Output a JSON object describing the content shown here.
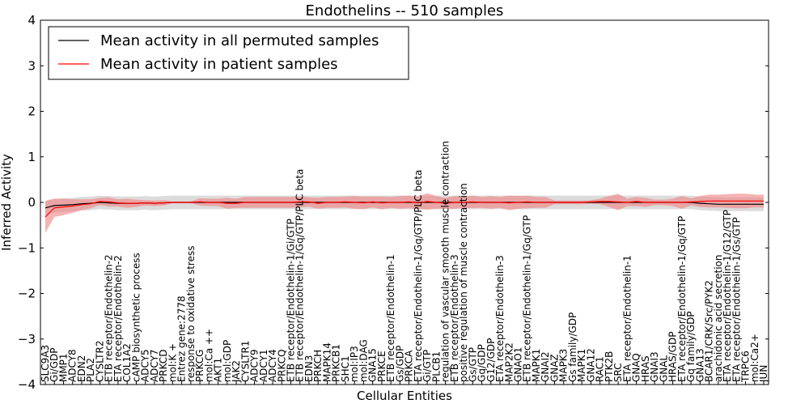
{
  "chart_data": {
    "type": "line",
    "title": "Endothelins -- 510 samples",
    "xlabel": "Cellular Entities",
    "ylabel": "Inferred Activity",
    "ylim": [
      -4,
      4
    ],
    "yticks": [
      "−4",
      "−3",
      "−2",
      "−1",
      "0",
      "1",
      "2",
      "3",
      "4"
    ],
    "grid": false,
    "legend_position": "top-left",
    "colors": {
      "permuted": "#000000",
      "patient": "#ff0000",
      "patient_band": "#f28080",
      "permuted_band": "#bfbfbf"
    },
    "categories": [
      "SLC9A3",
      "Gi/GDP",
      "MMP1",
      "ADCY8",
      "EDN2",
      "PLA2",
      "CYSLTR2",
      "ETB receptor/Endothelin-2",
      "ETA receptor/Endothelin-2",
      "COL1A2",
      "cAMP biosynthetic process",
      "ADCY5",
      "ADCY7",
      "PRKCD",
      "mol:K +",
      "Entrez gene:2778",
      "response to oxidative stress",
      "PRKCG",
      "mol:Ca ++",
      "AKT1",
      "mol:GDP",
      "JAK2",
      "CYSLTR1",
      "ADCY9",
      "ADCY1",
      "ADCY4",
      "PRKCQ",
      "ETB receptor/Endothelin-1/Gi/GTP",
      "ETB receptor/Endothelin-1/Gq/GTP/PLC beta",
      "EDN3",
      "PRKCH",
      "MAPK14",
      "PRKCB1",
      "SHC1",
      "mol:IP3",
      "mol:DAG",
      "GNA15",
      "PRKCE",
      "ETB receptor/Endothelin-1",
      "Gs/GDP",
      "PRKCA",
      "ETA receptor/Endothelin-1/Gq/GTP/PLC beta",
      "Gi/GTP",
      "PLCB1",
      "regulation of vascular smooth muscle contraction",
      "ETB receptor/Endothelin-3",
      "positive regulation of muscle contraction",
      "Gs/GTP",
      "Gq/GDP",
      "G12/GDP",
      "ETA receptor/Endothelin-3",
      "MAP2K2",
      "GNAO1",
      "ETB receptor/Endothelin-1/Gq/GTP",
      "MAPK1",
      "GNAI2",
      "GNAZ",
      "MAPK3",
      "Gs family/GDP",
      "MAPK1",
      "GNA12",
      "RAC1",
      "PTK2B",
      "SRC",
      "ETA receptor/Endothelin-1",
      "GNAQ",
      "HRAS",
      "GNAI3",
      "GNAL",
      "HRAS/GDP",
      "ETA receptor/Endothelin-1/Gq/GTP",
      "Gq family/GDP",
      "GNA13",
      "BCAR1/CRK/Src/PYK2",
      "arachidonic acid secretion",
      "ETA receptor/Endothelin-1/G12/GTP",
      "ETA receptor/Endothelin-1/Gs/GTP",
      "TRPC6",
      "mol:Ca2+",
      "JUN"
    ],
    "series": [
      {
        "name": "Mean activity in all permuted samples",
        "values": [
          -0.12,
          -0.07,
          -0.06,
          -0.05,
          -0.03,
          -0.02,
          0.0,
          -0.01,
          -0.02,
          -0.02,
          -0.02,
          -0.01,
          -0.02,
          -0.01,
          0.0,
          0.0,
          0.0,
          0.0,
          0.0,
          0.0,
          0.0,
          0.0,
          0.0,
          0.0,
          0.0,
          0.0,
          0.0,
          0.0,
          0.0,
          0.0,
          0.0,
          0.0,
          0.0,
          0.0,
          0.0,
          0.0,
          0.0,
          0.0,
          0.0,
          0.0,
          0.0,
          0.0,
          0.0,
          0.0,
          0.0,
          0.0,
          0.0,
          0.0,
          0.0,
          0.0,
          0.0,
          0.0,
          0.0,
          0.0,
          0.0,
          0.0,
          0.0,
          0.0,
          0.0,
          0.0,
          0.0,
          0.0,
          0.0,
          0.0,
          0.0,
          0.0,
          0.0,
          0.0,
          0.0,
          0.0,
          0.0,
          0.0,
          -0.02,
          -0.03,
          -0.04,
          -0.04,
          -0.04,
          -0.04,
          -0.04,
          -0.04
        ],
        "band": [
          0.15,
          0.15,
          0.15,
          0.15,
          0.15,
          0.15,
          0.15,
          0.15,
          0.15,
          0.15,
          0.15,
          0.15,
          0.15,
          0.15,
          0.15,
          0.15,
          0.15,
          0.15,
          0.15,
          0.15,
          0.15,
          0.15,
          0.15,
          0.15,
          0.15,
          0.15,
          0.15,
          0.15,
          0.15,
          0.15,
          0.15,
          0.15,
          0.15,
          0.15,
          0.15,
          0.15,
          0.15,
          0.15,
          0.15,
          0.15,
          0.15,
          0.15,
          0.15,
          0.15,
          0.15,
          0.15,
          0.15,
          0.15,
          0.15,
          0.15,
          0.15,
          0.15,
          0.15,
          0.15,
          0.15,
          0.15,
          0.15,
          0.15,
          0.15,
          0.15,
          0.15,
          0.15,
          0.15,
          0.15,
          0.15,
          0.15,
          0.15,
          0.15,
          0.15,
          0.15,
          0.15,
          0.15,
          0.15,
          0.15,
          0.15,
          0.15,
          0.15,
          0.15,
          0.15,
          0.15
        ]
      },
      {
        "name": "Mean activity in patient samples",
        "values": [
          -0.32,
          -0.12,
          -0.1,
          -0.08,
          -0.05,
          -0.03,
          0.02,
          0.01,
          -0.01,
          -0.02,
          -0.02,
          -0.01,
          -0.02,
          -0.01,
          0.0,
          0.0,
          0.0,
          0.01,
          0.0,
          0.0,
          -0.02,
          -0.02,
          0.0,
          0.0,
          0.0,
          0.0,
          0.0,
          0.0,
          0.01,
          0.01,
          -0.02,
          0.0,
          0.0,
          0.01,
          0.0,
          -0.01,
          0.01,
          -0.01,
          0.0,
          0.0,
          0.01,
          -0.01,
          0.02,
          0.0,
          -0.02,
          0.0,
          0.0,
          0.01,
          0.0,
          0.0,
          0.0,
          -0.01,
          0.0,
          0.01,
          0.0,
          0.0,
          0.0,
          0.0,
          0.0,
          0.0,
          0.01,
          0.02,
          0.02,
          0.01,
          0.0,
          0.02,
          0.0,
          0.0,
          0.0,
          0.0,
          0.0,
          0.01,
          0.02,
          0.03,
          0.03,
          0.03,
          0.03,
          0.03,
          0.03,
          0.03
        ],
        "band": [
          0.35,
          0.2,
          0.18,
          0.15,
          0.12,
          0.1,
          0.08,
          0.1,
          0.08,
          0.1,
          0.08,
          0.06,
          0.06,
          0.06,
          0.02,
          0.02,
          0.02,
          0.08,
          0.08,
          0.08,
          0.12,
          0.1,
          0.12,
          0.12,
          0.12,
          0.12,
          0.12,
          0.12,
          0.12,
          0.1,
          0.12,
          0.12,
          0.12,
          0.12,
          0.14,
          0.14,
          0.12,
          0.14,
          0.12,
          0.14,
          0.14,
          0.14,
          0.18,
          0.14,
          0.12,
          0.14,
          0.12,
          0.14,
          0.12,
          0.14,
          0.12,
          0.16,
          0.14,
          0.14,
          0.12,
          0.12,
          0.04,
          0.04,
          0.04,
          0.04,
          0.04,
          0.06,
          0.12,
          0.18,
          0.08,
          0.1,
          0.1,
          0.06,
          0.06,
          0.08,
          0.14,
          0.08,
          0.12,
          0.14,
          0.14,
          0.15,
          0.16,
          0.16,
          0.14,
          0.14
        ]
      }
    ]
  }
}
